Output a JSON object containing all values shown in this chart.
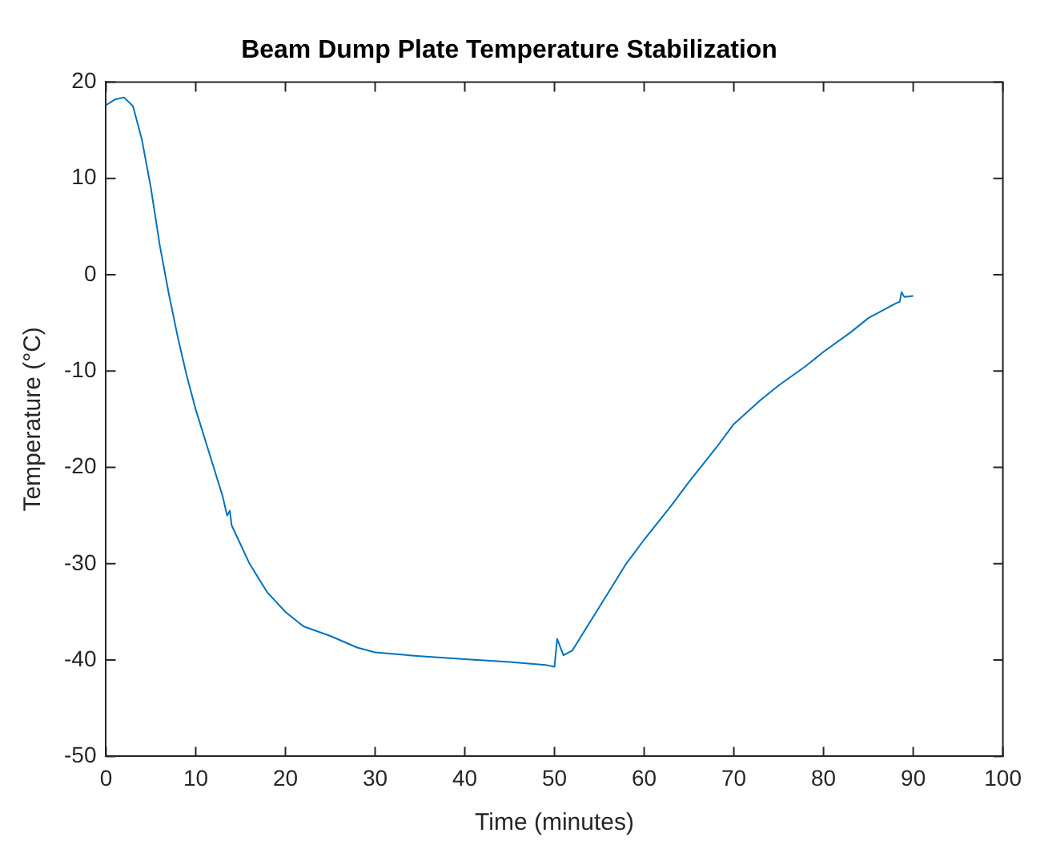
{
  "chart_data": {
    "type": "line",
    "title": "Beam Dump Plate Temperature Stabilization",
    "xlabel": "Time (minutes)",
    "ylabel": "Temperature (°C)",
    "x": [
      0,
      1,
      2,
      3,
      4,
      5,
      6,
      7,
      8,
      9,
      10,
      11,
      12,
      13,
      13.5,
      13.8,
      14,
      15,
      16,
      17,
      18,
      20,
      22,
      25,
      28,
      30,
      35,
      40,
      45,
      49,
      50,
      50.3,
      51,
      52,
      53,
      55,
      58,
      60,
      63,
      65,
      68,
      70,
      73,
      75,
      78,
      80,
      83,
      85,
      88,
      88.5,
      88.7,
      89,
      90
    ],
    "series": [
      {
        "color": "#0072bd",
        "values": [
          17.6,
          18.2,
          18.4,
          17.5,
          14,
          9,
          3,
          -2,
          -6.5,
          -10.5,
          -14,
          -17,
          -20,
          -23,
          -25,
          -24.5,
          -26,
          -28,
          -30,
          -31.5,
          -33,
          -35,
          -36.5,
          -37.5,
          -38.7,
          -39.2,
          -39.6,
          -39.9,
          -40.2,
          -40.5,
          -40.7,
          -37.8,
          -39.5,
          -39,
          -37.5,
          -34.5,
          -30,
          -27.5,
          -24,
          -21.5,
          -18,
          -15.5,
          -13,
          -11.5,
          -9.5,
          -8,
          -6,
          -4.5,
          -3,
          -2.8,
          -1.8,
          -2.3,
          -2.2
        ]
      }
    ],
    "xlim": [
      0,
      100
    ],
    "xticks": [
      0,
      10,
      20,
      30,
      40,
      50,
      60,
      70,
      80,
      90,
      100
    ],
    "ylim": [
      -50,
      20
    ],
    "yticks": [
      -50,
      -40,
      -30,
      -20,
      -10,
      0,
      10,
      20
    ],
    "grid": false,
    "legend": false,
    "marker": "none",
    "line_style": "solid"
  }
}
